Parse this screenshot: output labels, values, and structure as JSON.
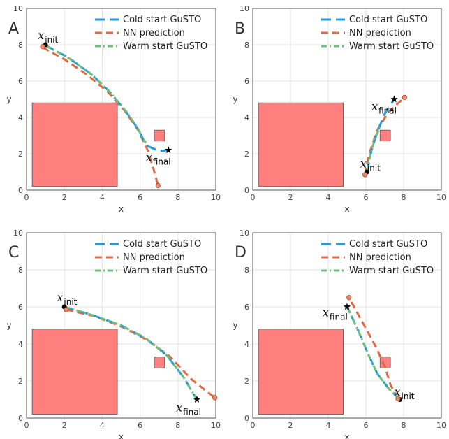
{
  "chart_data": [
    {
      "type": "line",
      "panel_label": "A",
      "xlabel": "x",
      "ylabel": "y",
      "xlim": [
        0,
        10
      ],
      "ylim": [
        0,
        10
      ],
      "xticks": [
        "0",
        "2",
        "4",
        "6",
        "8",
        "10"
      ],
      "yticks": [
        "0",
        "2",
        "4",
        "6",
        "8",
        "10"
      ],
      "grid": true,
      "legend_position": "top-right",
      "obstacles": [
        {
          "x0": 0.3,
          "y0": 0.2,
          "x1": 4.8,
          "y1": 4.8
        },
        {
          "x0": 6.75,
          "y0": 2.7,
          "x1": 7.3,
          "y1": 3.3
        }
      ],
      "series": [
        {
          "name": "Cold start GuSTO",
          "color": "#1f9be0",
          "style": "dashed-long",
          "x": [
            0.95,
            2.2,
            3.4,
            4.4,
            5.2,
            5.8,
            6.35,
            7.0,
            7.5
          ],
          "y": [
            8.0,
            7.3,
            6.4,
            5.4,
            4.4,
            3.5,
            2.45,
            2.15,
            2.2
          ]
        },
        {
          "name": "NN prediction",
          "color": "#e06a44",
          "style": "dashed",
          "x": [
            0.85,
            2.0,
            3.2,
            4.3,
            5.2,
            5.9,
            6.4,
            6.7,
            6.95
          ],
          "y": [
            7.85,
            7.2,
            6.35,
            5.4,
            4.35,
            3.3,
            2.2,
            1.2,
            0.25
          ]
        },
        {
          "name": "Warm start GuSTO",
          "color": "#6fbf7a",
          "style": "dashdot",
          "x": [
            1.0,
            2.25,
            3.45,
            4.45,
            5.25,
            5.85,
            6.3
          ],
          "y": [
            7.95,
            7.25,
            6.35,
            5.35,
            4.35,
            3.45,
            2.6
          ]
        }
      ],
      "markers": [
        {
          "kind": "start",
          "x": 1.0,
          "y": 8.0
        },
        {
          "kind": "goal",
          "x": 7.5,
          "y": 2.2
        },
        {
          "kind": "nn-end",
          "x": 6.95,
          "y": 0.25
        },
        {
          "kind": "nn-start",
          "x": 0.85,
          "y": 7.9
        }
      ],
      "annotations": [
        {
          "main": "x",
          "sub": "init",
          "x": 0.6,
          "y": 8.3
        },
        {
          "main": "x",
          "sub": "final",
          "x": 6.3,
          "y": 1.6
        }
      ]
    },
    {
      "type": "line",
      "panel_label": "B",
      "xlabel": "x",
      "ylabel": "y",
      "xlim": [
        0,
        10
      ],
      "ylim": [
        0,
        10
      ],
      "xticks": [
        "0",
        "2",
        "4",
        "6",
        "8",
        "10"
      ],
      "yticks": [
        "0",
        "2",
        "4",
        "6",
        "8",
        "10"
      ],
      "grid": true,
      "legend_position": "top-right",
      "obstacles": [
        {
          "x0": 0.3,
          "y0": 0.2,
          "x1": 4.8,
          "y1": 4.8
        },
        {
          "x0": 6.75,
          "y0": 2.7,
          "x1": 7.3,
          "y1": 3.3
        }
      ],
      "series": [
        {
          "name": "Cold start GuSTO",
          "color": "#1f9be0",
          "style": "dashed-long",
          "x": [
            6.05,
            6.3,
            6.6,
            7.0,
            7.5
          ],
          "y": [
            1.0,
            2.2,
            3.2,
            4.2,
            5.0
          ]
        },
        {
          "name": "NN prediction",
          "color": "#e06a44",
          "style": "dashed",
          "x": [
            5.95,
            6.15,
            6.6,
            7.2,
            8.05
          ],
          "y": [
            0.85,
            1.9,
            3.3,
            4.3,
            5.1
          ]
        },
        {
          "name": "Warm start GuSTO",
          "color": "#6fbf7a",
          "style": "dashdot",
          "x": [
            6.05,
            6.25,
            6.5,
            6.8
          ],
          "y": [
            1.0,
            2.0,
            2.9,
            3.6
          ]
        }
      ],
      "markers": [
        {
          "kind": "start",
          "x": 6.05,
          "y": 1.0
        },
        {
          "kind": "goal",
          "x": 7.5,
          "y": 5.0
        },
        {
          "kind": "nn-end",
          "x": 8.05,
          "y": 5.1
        },
        {
          "kind": "nn-start",
          "x": 5.95,
          "y": 0.85
        }
      ],
      "annotations": [
        {
          "main": "x",
          "sub": "init",
          "x": 5.7,
          "y": 1.25
        },
        {
          "main": "x",
          "sub": "final",
          "x": 6.3,
          "y": 4.4
        }
      ]
    },
    {
      "type": "line",
      "panel_label": "C",
      "xlabel": "x",
      "ylabel": "y",
      "xlim": [
        0,
        10
      ],
      "ylim": [
        0,
        10
      ],
      "xticks": [
        "0",
        "2",
        "4",
        "6",
        "8",
        "10"
      ],
      "yticks": [
        "0",
        "2",
        "4",
        "6",
        "8",
        "10"
      ],
      "grid": true,
      "legend_position": "top-right",
      "obstacles": [
        {
          "x0": 0.3,
          "y0": 0.2,
          "x1": 4.8,
          "y1": 4.8
        },
        {
          "x0": 6.75,
          "y0": 2.7,
          "x1": 7.3,
          "y1": 3.3
        }
      ],
      "series": [
        {
          "name": "Cold start GuSTO",
          "color": "#1f9be0",
          "style": "dashed-long",
          "x": [
            2.0,
            3.5,
            5.0,
            6.3,
            7.4,
            8.3,
            9.0
          ],
          "y": [
            6.0,
            5.55,
            5.0,
            4.3,
            3.4,
            2.2,
            1.0
          ]
        },
        {
          "name": "NN prediction",
          "color": "#e06a44",
          "style": "dashed",
          "x": [
            2.1,
            3.6,
            5.1,
            6.4,
            7.6,
            8.7,
            9.95
          ],
          "y": [
            5.85,
            5.5,
            4.9,
            4.2,
            3.3,
            2.1,
            1.1
          ]
        },
        {
          "name": "Warm start GuSTO",
          "color": "#6fbf7a",
          "style": "dashdot",
          "x": [
            2.0,
            3.5,
            5.0,
            6.3,
            7.4,
            8.3,
            9.0
          ],
          "y": [
            6.0,
            5.55,
            5.0,
            4.3,
            3.4,
            2.2,
            1.0
          ]
        }
      ],
      "markers": [
        {
          "kind": "start",
          "x": 2.0,
          "y": 6.0
        },
        {
          "kind": "goal",
          "x": 9.0,
          "y": 1.0
        },
        {
          "kind": "nn-end",
          "x": 9.95,
          "y": 1.1
        },
        {
          "kind": "nn-start",
          "x": 2.1,
          "y": 5.85
        }
      ],
      "annotations": [
        {
          "main": "x",
          "sub": "init",
          "x": 1.6,
          "y": 6.3
        },
        {
          "main": "x",
          "sub": "final",
          "x": 7.9,
          "y": 0.35
        }
      ]
    },
    {
      "type": "line",
      "panel_label": "D",
      "xlabel": "x",
      "ylabel": "y",
      "xlim": [
        0,
        10
      ],
      "ylim": [
        0,
        10
      ],
      "xticks": [
        "0",
        "2",
        "4",
        "6",
        "8",
        "10"
      ],
      "yticks": [
        "0",
        "2",
        "4",
        "6",
        "8",
        "10"
      ],
      "grid": true,
      "legend_position": "top-right",
      "obstacles": [
        {
          "x0": 0.3,
          "y0": 0.2,
          "x1": 4.8,
          "y1": 4.8
        },
        {
          "x0": 6.75,
          "y0": 2.7,
          "x1": 7.3,
          "y1": 3.3
        }
      ],
      "series": [
        {
          "name": "Cold start GuSTO",
          "color": "#1f9be0",
          "style": "dashed-long",
          "x": [
            7.8,
            7.2,
            6.6,
            6.1,
            5.6,
            5.0
          ],
          "y": [
            1.0,
            1.6,
            2.4,
            3.5,
            4.7,
            6.0
          ]
        },
        {
          "name": "NN prediction",
          "color": "#e06a44",
          "style": "dashed",
          "x": [
            7.7,
            7.3,
            7.0,
            6.5,
            5.8,
            5.1
          ],
          "y": [
            1.05,
            1.8,
            2.8,
            3.9,
            5.2,
            6.5
          ]
        },
        {
          "name": "Warm start GuSTO",
          "color": "#6fbf7a",
          "style": "dashdot",
          "x": [
            7.8,
            7.2,
            6.6,
            6.1,
            5.6,
            5.0
          ],
          "y": [
            1.0,
            1.6,
            2.4,
            3.5,
            4.7,
            6.0
          ]
        }
      ],
      "markers": [
        {
          "kind": "start",
          "x": 7.8,
          "y": 1.0
        },
        {
          "kind": "goal",
          "x": 5.0,
          "y": 6.0
        },
        {
          "kind": "nn-end",
          "x": 5.1,
          "y": 6.5
        },
        {
          "kind": "nn-start",
          "x": 7.7,
          "y": 1.05
        }
      ],
      "annotations": [
        {
          "main": "x",
          "sub": "init",
          "x": 7.5,
          "y": 1.2
        },
        {
          "main": "x",
          "sub": "final",
          "x": 3.7,
          "y": 5.5
        }
      ]
    }
  ]
}
